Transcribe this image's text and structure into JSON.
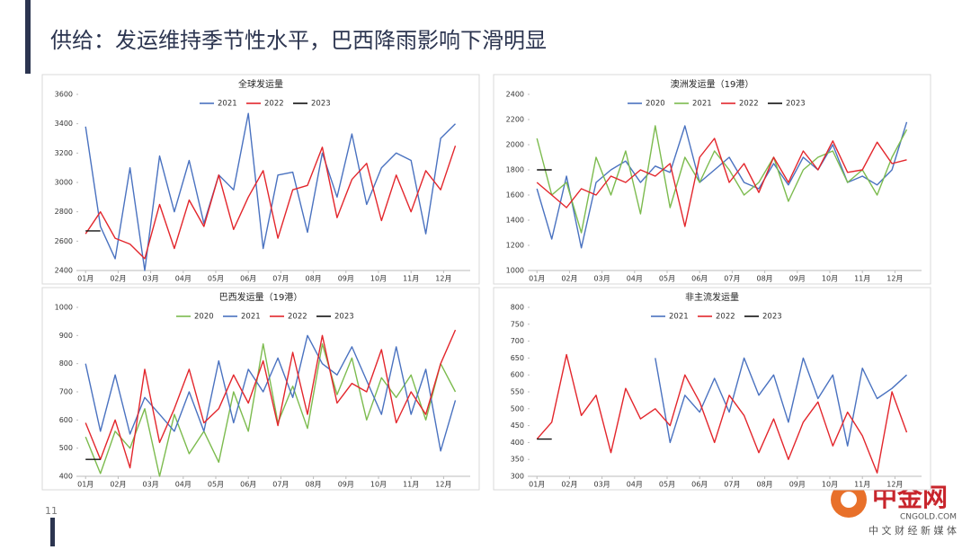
{
  "title": "供给：发运维持季节性水平，巴西降雨影响下滑明显",
  "page_number": "11",
  "logo": {
    "name": "中金网",
    "site": "CNGOLD.COM",
    "slogan": "中 文 财 经 新 媒 体"
  },
  "chart_data": [
    {
      "type": "line",
      "title": "全球发运量",
      "x": [
        1,
        3,
        5,
        7,
        9,
        11,
        13,
        15,
        17,
        19,
        21,
        23,
        25,
        27,
        29,
        31,
        33,
        35,
        37,
        39,
        41,
        43,
        45,
        47,
        49,
        51
      ],
      "xlim": [
        0,
        53
      ],
      "xticks": [
        {
          "value": 1,
          "label": "01月"
        },
        {
          "value": 5.4,
          "label": "02月"
        },
        {
          "value": 9.8,
          "label": "03月"
        },
        {
          "value": 14.2,
          "label": "04月"
        },
        {
          "value": 18.6,
          "label": "05月"
        },
        {
          "value": 23,
          "label": "06月"
        },
        {
          "value": 27.4,
          "label": "07月"
        },
        {
          "value": 31.8,
          "label": "08月"
        },
        {
          "value": 36.2,
          "label": "09月"
        },
        {
          "value": 40.6,
          "label": "10月"
        },
        {
          "value": 45,
          "label": "11月"
        },
        {
          "value": 49.4,
          "label": "12月"
        }
      ],
      "ylim": [
        2400,
        3600
      ],
      "yticks": [
        2400,
        2600,
        2800,
        3000,
        3200,
        3400,
        3600
      ],
      "series": [
        {
          "name": "2021",
          "color": "#4a72c0",
          "values": [
            3380,
            2700,
            2480,
            3100,
            2400,
            3180,
            2800,
            3150,
            2720,
            3050,
            2950,
            3470,
            2550,
            3050,
            3070,
            2660,
            3200,
            2900,
            3330,
            2850,
            3100,
            3200,
            3150,
            2650,
            3300,
            3400
          ]
        },
        {
          "name": "2022",
          "color": "#e3262c",
          "values": [
            2650,
            2800,
            2620,
            2580,
            2480,
            2850,
            2550,
            2880,
            2700,
            3050,
            2680,
            2900,
            3080,
            2620,
            2950,
            2980,
            3240,
            2760,
            3020,
            3130,
            2740,
            3050,
            2800,
            3080,
            2950,
            3250
          ]
        },
        {
          "name": "2023",
          "color": "#111111",
          "values": [
            2670,
            2670,
            null,
            null,
            null,
            null,
            null,
            null,
            null,
            null,
            null,
            null,
            null,
            null,
            null,
            null,
            null,
            null,
            null,
            null,
            null,
            null,
            null,
            null,
            null,
            null
          ]
        }
      ]
    },
    {
      "type": "line",
      "title": "澳洲发运量（19港）",
      "x": [
        1,
        3,
        5,
        7,
        9,
        11,
        13,
        15,
        17,
        19,
        21,
        23,
        25,
        27,
        29,
        31,
        33,
        35,
        37,
        39,
        41,
        43,
        45,
        47,
        49,
        51
      ],
      "xlim": [
        0,
        53
      ],
      "xticks": [
        {
          "value": 1,
          "label": "01月"
        },
        {
          "value": 5.4,
          "label": "02月"
        },
        {
          "value": 9.8,
          "label": "03月"
        },
        {
          "value": 14.2,
          "label": "04月"
        },
        {
          "value": 18.6,
          "label": "05月"
        },
        {
          "value": 23,
          "label": "06月"
        },
        {
          "value": 27.4,
          "label": "07月"
        },
        {
          "value": 31.8,
          "label": "08月"
        },
        {
          "value": 36.2,
          "label": "09月"
        },
        {
          "value": 40.6,
          "label": "10月"
        },
        {
          "value": 45,
          "label": "11月"
        },
        {
          "value": 49.4,
          "label": "12月"
        }
      ],
      "ylim": [
        1000,
        2400
      ],
      "yticks": [
        1000,
        1200,
        1400,
        1600,
        1800,
        2000,
        2200,
        2400
      ],
      "series": [
        {
          "name": "2020",
          "color": "#4a72c0",
          "values": [
            1650,
            1250,
            1750,
            1180,
            1700,
            1800,
            1870,
            1700,
            1830,
            1780,
            2150,
            1700,
            1800,
            1900,
            1700,
            1650,
            1850,
            1680,
            1900,
            1800,
            2000,
            1700,
            1750,
            1680,
            1800,
            2180
          ]
        },
        {
          "name": "2021",
          "color": "#7cbb4e",
          "values": [
            2050,
            1600,
            1700,
            1300,
            1900,
            1600,
            1950,
            1450,
            2150,
            1500,
            1900,
            1700,
            1950,
            1800,
            1600,
            1700,
            1900,
            1550,
            1800,
            1900,
            1950,
            1700,
            1800,
            1600,
            1900,
            2120
          ]
        },
        {
          "name": "2022",
          "color": "#e3262c",
          "values": [
            1700,
            1600,
            1500,
            1650,
            1600,
            1750,
            1700,
            1800,
            1750,
            1850,
            1350,
            1900,
            2050,
            1700,
            1850,
            1620,
            1900,
            1700,
            1950,
            1800,
            2030,
            1780,
            1800,
            2020,
            1850,
            1880
          ]
        },
        {
          "name": "2023",
          "color": "#111111",
          "values": [
            1800,
            1800,
            null,
            null,
            null,
            null,
            null,
            null,
            null,
            null,
            null,
            null,
            null,
            null,
            null,
            null,
            null,
            null,
            null,
            null,
            null,
            null,
            null,
            null,
            null,
            null
          ]
        }
      ]
    },
    {
      "type": "line",
      "title": "巴西发运量（19港）",
      "x": [
        1,
        3,
        5,
        7,
        9,
        11,
        13,
        15,
        17,
        19,
        21,
        23,
        25,
        27,
        29,
        31,
        33,
        35,
        37,
        39,
        41,
        43,
        45,
        47,
        49,
        51
      ],
      "xlim": [
        0,
        53
      ],
      "xticks": [
        {
          "value": 1,
          "label": "01月"
        },
        {
          "value": 5.4,
          "label": "02月"
        },
        {
          "value": 9.8,
          "label": "03月"
        },
        {
          "value": 14.2,
          "label": "04月"
        },
        {
          "value": 18.6,
          "label": "05月"
        },
        {
          "value": 23,
          "label": "06月"
        },
        {
          "value": 27.4,
          "label": "07月"
        },
        {
          "value": 31.8,
          "label": "08月"
        },
        {
          "value": 36.2,
          "label": "09月"
        },
        {
          "value": 40.6,
          "label": "10月"
        },
        {
          "value": 45,
          "label": "11月"
        },
        {
          "value": 49.4,
          "label": "12月"
        }
      ],
      "ylim": [
        400,
        1000
      ],
      "yticks": [
        400,
        500,
        600,
        700,
        800,
        900,
        1000
      ],
      "series": [
        {
          "name": "2020",
          "color": "#7cbb4e",
          "values": [
            540,
            410,
            560,
            500,
            640,
            400,
            620,
            480,
            560,
            450,
            700,
            560,
            870,
            590,
            720,
            570,
            870,
            690,
            820,
            600,
            750,
            680,
            760,
            600,
            800,
            700
          ]
        },
        {
          "name": "2021",
          "color": "#4a72c0",
          "values": [
            800,
            560,
            760,
            550,
            680,
            620,
            560,
            700,
            560,
            810,
            590,
            780,
            700,
            820,
            680,
            900,
            800,
            760,
            860,
            740,
            620,
            860,
            620,
            780,
            490,
            670
          ]
        },
        {
          "name": "2022",
          "color": "#e3262c",
          "values": [
            590,
            460,
            600,
            430,
            780,
            520,
            640,
            780,
            590,
            640,
            760,
            660,
            810,
            580,
            840,
            620,
            900,
            660,
            730,
            700,
            850,
            590,
            700,
            620,
            800,
            920
          ]
        },
        {
          "name": "2023",
          "color": "#111111",
          "values": [
            460,
            460,
            null,
            null,
            null,
            null,
            null,
            null,
            null,
            null,
            null,
            null,
            null,
            null,
            null,
            null,
            null,
            null,
            null,
            null,
            null,
            null,
            null,
            null,
            null,
            null
          ]
        }
      ]
    },
    {
      "type": "line",
      "title": "非主流发运量",
      "x": [
        1,
        3,
        5,
        7,
        9,
        11,
        13,
        15,
        17,
        19,
        21,
        23,
        25,
        27,
        29,
        31,
        33,
        35,
        37,
        39,
        41,
        43,
        45,
        47,
        49,
        51
      ],
      "xlim": [
        0,
        53
      ],
      "xticks": [
        {
          "value": 1,
          "label": "01月"
        },
        {
          "value": 5.4,
          "label": "02月"
        },
        {
          "value": 9.8,
          "label": "03月"
        },
        {
          "value": 14.2,
          "label": "04月"
        },
        {
          "value": 18.6,
          "label": "05月"
        },
        {
          "value": 23,
          "label": "06月"
        },
        {
          "value": 27.4,
          "label": "07月"
        },
        {
          "value": 31.8,
          "label": "08月"
        },
        {
          "value": 36.2,
          "label": "09月"
        },
        {
          "value": 40.6,
          "label": "10月"
        },
        {
          "value": 45,
          "label": "11月"
        },
        {
          "value": 49.4,
          "label": "12月"
        }
      ],
      "ylim": [
        300,
        800
      ],
      "yticks": [
        300,
        350,
        400,
        450,
        500,
        550,
        600,
        650,
        700,
        750,
        800
      ],
      "series": [
        {
          "name": "2021",
          "color": "#4a72c0",
          "values": [
            null,
            null,
            null,
            null,
            null,
            null,
            null,
            null,
            650,
            400,
            540,
            490,
            590,
            490,
            650,
            540,
            600,
            460,
            650,
            530,
            600,
            390,
            620,
            530,
            560,
            600
          ]
        },
        {
          "name": "2022",
          "color": "#e3262c",
          "values": [
            410,
            460,
            660,
            480,
            540,
            370,
            560,
            470,
            500,
            450,
            600,
            520,
            400,
            540,
            480,
            370,
            470,
            350,
            460,
            520,
            390,
            490,
            420,
            310,
            550,
            430
          ]
        },
        {
          "name": "2023",
          "color": "#111111",
          "values": [
            410,
            410,
            null,
            null,
            null,
            null,
            null,
            null,
            null,
            null,
            null,
            null,
            null,
            null,
            null,
            null,
            null,
            null,
            null,
            null,
            null,
            null,
            null,
            null,
            null,
            null
          ]
        }
      ]
    }
  ]
}
